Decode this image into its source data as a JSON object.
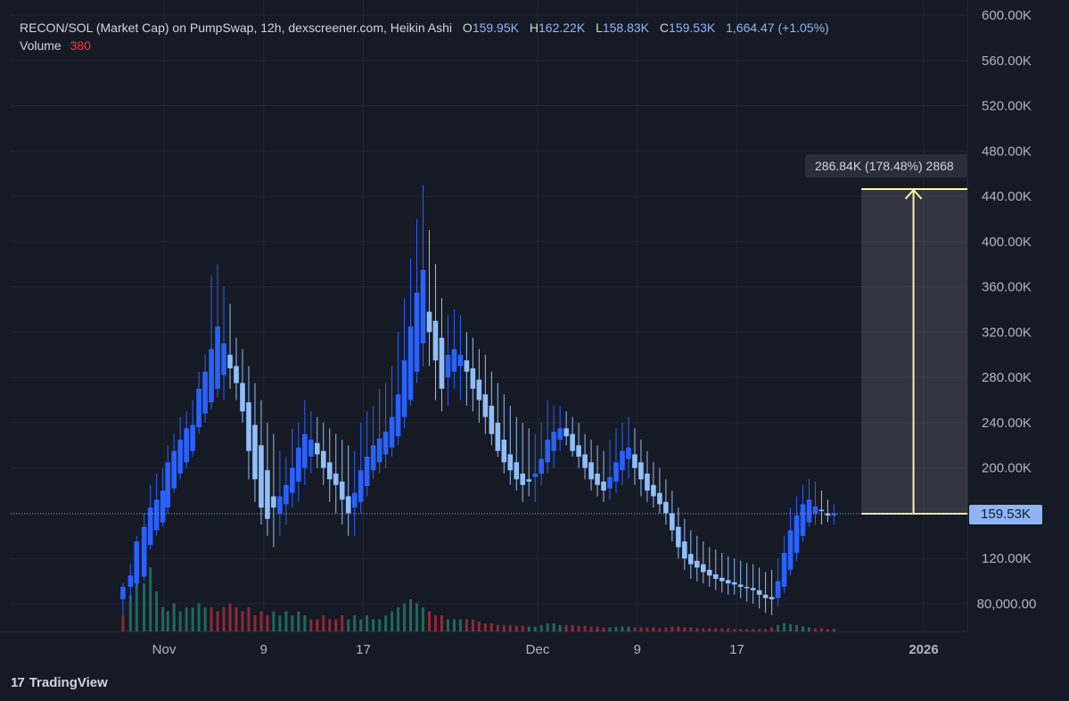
{
  "legend": {
    "title": "RECON/SOL (Market Cap) on PumpSwap, 12h, dexscreener.com, Heikin Ashi",
    "o_label": "O",
    "o_value": "159.95K",
    "h_label": "H",
    "h_value": "162.22K",
    "l_label": "L",
    "l_value": "158.83K",
    "c_label": "C",
    "c_value": "159.53K",
    "change": "1,664.47 (+1.05%)",
    "volume_label": "Volume",
    "volume_value": "380"
  },
  "brand": {
    "logo_text": "17",
    "name": "TradingView"
  },
  "measure": {
    "label": "286.84K (178.48%) 2868"
  },
  "last_price_tag": "159.53K",
  "colors": {
    "background": "#161a25",
    "grid": "#222632",
    "up_candle": "#2962ff",
    "down_candle": "#90bff9",
    "volume_up": "#22ab94",
    "volume_down": "#f23645",
    "measure_line": "#fff2a8",
    "price_line": "#8fb4f5"
  },
  "chart_data": {
    "type": "candlestick",
    "title": "RECON/SOL (Market Cap) on PumpSwap, 12h, dexscreener.com, Heikin Ashi",
    "y_ticks": [
      "600.00K",
      "560.00K",
      "520.00K",
      "480.00K",
      "440.00K",
      "400.00K",
      "360.00K",
      "320.00K",
      "280.00K",
      "240.00K",
      "200.00K",
      "120.00K",
      "80,000.00"
    ],
    "y_tick_values": [
      600,
      560,
      520,
      480,
      440,
      400,
      360,
      320,
      280,
      240,
      200,
      120,
      80
    ],
    "x_ticks": [
      "Nov",
      "9",
      "17",
      "Dec",
      "9",
      "17",
      "2026"
    ],
    "x_tick_days": [
      0,
      8,
      16,
      30,
      38,
      46,
      61
    ],
    "ylim_k": [
      70,
      610
    ],
    "xlim_days": [
      -4.6,
      64.8
    ],
    "grid": true,
    "y_scale": "linear",
    "last_price_k": 159.53,
    "measure_target_k": 446.37,
    "measure_span_days": [
      56,
      63.2
    ],
    "candles_note": "Heikin Ashi 12h candles in thousands; x in days from Nov 1; values estimated from gridlines",
    "candles": [
      [
        -3.3,
        84,
        98,
        70,
        95
      ],
      [
        -2.7,
        95,
        115,
        82,
        105
      ],
      [
        -2.2,
        98,
        140,
        94,
        135
      ],
      [
        -1.6,
        104,
        160,
        100,
        148
      ],
      [
        -1.1,
        132,
        185,
        128,
        165
      ],
      [
        -0.6,
        145,
        195,
        140,
        172
      ],
      [
        -0.1,
        152,
        200,
        148,
        180
      ],
      [
        0.3,
        165,
        220,
        160,
        205
      ],
      [
        0.8,
        182,
        230,
        178,
        215
      ],
      [
        1.3,
        195,
        245,
        190,
        225
      ],
      [
        1.8,
        205,
        250,
        200,
        235
      ],
      [
        2.3,
        215,
        260,
        210,
        238
      ],
      [
        2.8,
        236,
        285,
        230,
        270
      ],
      [
        3.3,
        248,
        300,
        240,
        285
      ],
      [
        3.8,
        258,
        370,
        252,
        305
      ],
      [
        4.3,
        270,
        380,
        262,
        325
      ],
      [
        4.8,
        282,
        360,
        260,
        310
      ],
      [
        5.3,
        300,
        345,
        270,
        288
      ],
      [
        5.8,
        290,
        315,
        260,
        275
      ],
      [
        6.3,
        275,
        305,
        240,
        250
      ],
      [
        6.8,
        258,
        290,
        190,
        215
      ],
      [
        7.3,
        238,
        275,
        170,
        190
      ],
      [
        7.8,
        220,
        260,
        150,
        165
      ],
      [
        8.3,
        198,
        240,
        140,
        155
      ],
      [
        8.8,
        175,
        230,
        130,
        165
      ],
      [
        9.3,
        160,
        215,
        140,
        175
      ],
      [
        9.8,
        168,
        210,
        150,
        185
      ],
      [
        10.3,
        178,
        235,
        165,
        200
      ],
      [
        10.8,
        188,
        240,
        170,
        218
      ],
      [
        11.3,
        200,
        260,
        185,
        230
      ],
      [
        11.8,
        210,
        250,
        195,
        225
      ],
      [
        12.3,
        222,
        245,
        200,
        212
      ],
      [
        12.8,
        215,
        240,
        185,
        200
      ],
      [
        13.3,
        205,
        235,
        170,
        190
      ],
      [
        13.8,
        195,
        230,
        160,
        185
      ],
      [
        14.3,
        188,
        225,
        150,
        172
      ],
      [
        14.8,
        175,
        220,
        140,
        160
      ],
      [
        15.3,
        165,
        215,
        140,
        178
      ],
      [
        15.8,
        170,
        240,
        160,
        198
      ],
      [
        16.3,
        184,
        250,
        175,
        210
      ],
      [
        16.8,
        198,
        255,
        190,
        220
      ],
      [
        17.3,
        205,
        270,
        195,
        226
      ],
      [
        17.8,
        212,
        275,
        200,
        232
      ],
      [
        18.3,
        218,
        290,
        210,
        245
      ],
      [
        18.8,
        228,
        320,
        220,
        265
      ],
      [
        19.3,
        245,
        350,
        235,
        295
      ],
      [
        19.8,
        260,
        385,
        255,
        325
      ],
      [
        20.3,
        285,
        420,
        275,
        355
      ],
      [
        20.8,
        310,
        450,
        290,
        375
      ],
      [
        21.3,
        338,
        410,
        290,
        320
      ],
      [
        21.8,
        330,
        380,
        260,
        295
      ],
      [
        22.3,
        315,
        350,
        250,
        270
      ],
      [
        22.8,
        280,
        335,
        255,
        300
      ],
      [
        23.3,
        285,
        340,
        270,
        305
      ],
      [
        23.8,
        290,
        335,
        260,
        300
      ],
      [
        24.3,
        295,
        320,
        255,
        285
      ],
      [
        24.8,
        288,
        315,
        250,
        270
      ],
      [
        25.3,
        278,
        305,
        240,
        260
      ],
      [
        25.8,
        265,
        300,
        230,
        245
      ],
      [
        26.3,
        255,
        285,
        220,
        230
      ],
      [
        26.8,
        240,
        275,
        210,
        215
      ],
      [
        27.3,
        225,
        265,
        195,
        205
      ],
      [
        27.8,
        212,
        255,
        185,
        198
      ],
      [
        28.3,
        205,
        245,
        180,
        190
      ],
      [
        28.8,
        195,
        240,
        170,
        185
      ],
      [
        29.3,
        190,
        235,
        175,
        188
      ],
      [
        29.8,
        192,
        230,
        170,
        195
      ],
      [
        30.3,
        195,
        240,
        185,
        208
      ],
      [
        30.8,
        205,
        260,
        195,
        225
      ],
      [
        31.3,
        215,
        255,
        200,
        232
      ],
      [
        31.8,
        225,
        255,
        215,
        235
      ],
      [
        32.3,
        235,
        250,
        220,
        228
      ],
      [
        32.8,
        230,
        245,
        210,
        215
      ],
      [
        33.3,
        220,
        240,
        200,
        210
      ],
      [
        33.8,
        212,
        230,
        190,
        200
      ],
      [
        34.3,
        205,
        225,
        180,
        190
      ],
      [
        34.8,
        195,
        220,
        175,
        185
      ],
      [
        35.3,
        188,
        215,
        170,
        180
      ],
      [
        35.8,
        182,
        225,
        172,
        192
      ],
      [
        36.3,
        188,
        235,
        178,
        205
      ],
      [
        36.8,
        198,
        240,
        185,
        215
      ],
      [
        37.3,
        208,
        245,
        190,
        218
      ],
      [
        37.8,
        212,
        235,
        185,
        200
      ],
      [
        38.3,
        205,
        225,
        175,
        190
      ],
      [
        38.8,
        195,
        215,
        170,
        180
      ],
      [
        39.3,
        185,
        205,
        165,
        175
      ],
      [
        39.8,
        178,
        200,
        160,
        168
      ],
      [
        40.3,
        170,
        190,
        150,
        160
      ],
      [
        40.8,
        160,
        180,
        135,
        145
      ],
      [
        41.3,
        148,
        165,
        120,
        130
      ],
      [
        41.8,
        135,
        155,
        110,
        120
      ],
      [
        42.3,
        124,
        145,
        102,
        115
      ],
      [
        42.8,
        118,
        140,
        100,
        112
      ],
      [
        43.3,
        115,
        135,
        98,
        108
      ],
      [
        43.8,
        110,
        130,
        95,
        105
      ],
      [
        44.3,
        106,
        128,
        92,
        102
      ],
      [
        44.8,
        103,
        125,
        90,
        100
      ],
      [
        45.3,
        101,
        122,
        88,
        98
      ],
      [
        45.8,
        99,
        120,
        88,
        97
      ],
      [
        46.3,
        97,
        118,
        85,
        95
      ],
      [
        46.8,
        95,
        116,
        82,
        94
      ],
      [
        47.3,
        94,
        115,
        80,
        92
      ],
      [
        47.8,
        92,
        112,
        76,
        88
      ],
      [
        48.3,
        88,
        108,
        72,
        85
      ],
      [
        48.8,
        86,
        110,
        70,
        84
      ],
      [
        49.3,
        85,
        120,
        78,
        100
      ],
      [
        49.8,
        95,
        140,
        90,
        125
      ],
      [
        50.3,
        110,
        165,
        105,
        145
      ],
      [
        50.8,
        125,
        175,
        118,
        158
      ],
      [
        51.3,
        140,
        185,
        135,
        168
      ],
      [
        51.8,
        152,
        190,
        148,
        172
      ],
      [
        52.3,
        160,
        188,
        150,
        166
      ],
      [
        52.8,
        163,
        180,
        150,
        162
      ],
      [
        53.3,
        160,
        172,
        152,
        158
      ],
      [
        53.8,
        158,
        168,
        150,
        160
      ]
    ],
    "volumes_note": "Volume bar heights relative to panel max (1.0)",
    "volume_panel_k_range": "bottom panel",
    "volumes": [
      [
        -3.3,
        0.2,
        "down"
      ],
      [
        -2.7,
        0.45,
        "up"
      ],
      [
        -2.2,
        1.0,
        "up"
      ],
      [
        -1.6,
        0.6,
        "up"
      ],
      [
        -1.1,
        0.8,
        "up"
      ],
      [
        -0.6,
        0.5,
        "up"
      ],
      [
        -0.1,
        0.3,
        "up"
      ],
      [
        0.3,
        0.25,
        "up"
      ],
      [
        0.8,
        0.35,
        "up"
      ],
      [
        1.3,
        0.25,
        "up"
      ],
      [
        1.8,
        0.3,
        "up"
      ],
      [
        2.3,
        0.3,
        "up"
      ],
      [
        2.8,
        0.35,
        "up"
      ],
      [
        3.3,
        0.3,
        "up"
      ],
      [
        3.8,
        0.3,
        "down"
      ],
      [
        4.3,
        0.25,
        "down"
      ],
      [
        4.8,
        0.3,
        "down"
      ],
      [
        5.3,
        0.35,
        "down"
      ],
      [
        5.8,
        0.3,
        "down"
      ],
      [
        6.3,
        0.25,
        "down"
      ],
      [
        6.8,
        0.3,
        "down"
      ],
      [
        7.3,
        0.2,
        "down"
      ],
      [
        7.8,
        0.25,
        "down"
      ],
      [
        8.3,
        0.2,
        "down"
      ],
      [
        8.8,
        0.25,
        "up"
      ],
      [
        9.3,
        0.2,
        "up"
      ],
      [
        9.8,
        0.25,
        "up"
      ],
      [
        10.3,
        0.2,
        "up"
      ],
      [
        10.8,
        0.25,
        "up"
      ],
      [
        11.3,
        0.2,
        "up"
      ],
      [
        11.8,
        0.15,
        "down"
      ],
      [
        12.3,
        0.15,
        "down"
      ],
      [
        12.8,
        0.2,
        "down"
      ],
      [
        13.3,
        0.15,
        "down"
      ],
      [
        13.8,
        0.15,
        "down"
      ],
      [
        14.3,
        0.2,
        "down"
      ],
      [
        14.8,
        0.15,
        "up"
      ],
      [
        15.3,
        0.2,
        "up"
      ],
      [
        15.8,
        0.15,
        "up"
      ],
      [
        16.3,
        0.2,
        "up"
      ],
      [
        16.8,
        0.15,
        "up"
      ],
      [
        17.3,
        0.15,
        "up"
      ],
      [
        17.8,
        0.2,
        "up"
      ],
      [
        18.3,
        0.25,
        "up"
      ],
      [
        18.8,
        0.3,
        "up"
      ],
      [
        19.3,
        0.35,
        "up"
      ],
      [
        19.8,
        0.4,
        "up"
      ],
      [
        20.3,
        0.35,
        "up"
      ],
      [
        20.8,
        0.3,
        "up"
      ],
      [
        21.3,
        0.25,
        "down"
      ],
      [
        21.8,
        0.2,
        "down"
      ],
      [
        22.3,
        0.2,
        "down"
      ],
      [
        22.8,
        0.15,
        "up"
      ],
      [
        23.3,
        0.15,
        "up"
      ],
      [
        23.8,
        0.15,
        "up"
      ],
      [
        24.3,
        0.15,
        "down"
      ],
      [
        24.8,
        0.15,
        "down"
      ],
      [
        25.3,
        0.12,
        "down"
      ],
      [
        25.8,
        0.1,
        "down"
      ],
      [
        26.3,
        0.1,
        "down"
      ],
      [
        26.8,
        0.08,
        "down"
      ],
      [
        27.3,
        0.08,
        "down"
      ],
      [
        27.8,
        0.08,
        "down"
      ],
      [
        28.3,
        0.07,
        "down"
      ],
      [
        28.8,
        0.07,
        "down"
      ],
      [
        29.3,
        0.06,
        "up"
      ],
      [
        29.8,
        0.06,
        "up"
      ],
      [
        30.3,
        0.08,
        "up"
      ],
      [
        30.8,
        0.1,
        "up"
      ],
      [
        31.3,
        0.1,
        "up"
      ],
      [
        31.8,
        0.08,
        "up"
      ],
      [
        32.3,
        0.08,
        "down"
      ],
      [
        32.8,
        0.08,
        "down"
      ],
      [
        33.3,
        0.07,
        "down"
      ],
      [
        33.8,
        0.07,
        "down"
      ],
      [
        34.3,
        0.06,
        "down"
      ],
      [
        34.8,
        0.06,
        "down"
      ],
      [
        35.3,
        0.05,
        "down"
      ],
      [
        35.8,
        0.05,
        "up"
      ],
      [
        36.3,
        0.06,
        "up"
      ],
      [
        36.8,
        0.06,
        "up"
      ],
      [
        37.3,
        0.06,
        "up"
      ],
      [
        37.8,
        0.05,
        "down"
      ],
      [
        38.3,
        0.05,
        "down"
      ],
      [
        38.8,
        0.05,
        "down"
      ],
      [
        39.3,
        0.05,
        "down"
      ],
      [
        39.8,
        0.04,
        "down"
      ],
      [
        40.3,
        0.05,
        "down"
      ],
      [
        40.8,
        0.06,
        "down"
      ],
      [
        41.3,
        0.06,
        "down"
      ],
      [
        41.8,
        0.05,
        "down"
      ],
      [
        42.3,
        0.05,
        "down"
      ],
      [
        42.8,
        0.04,
        "down"
      ],
      [
        43.3,
        0.04,
        "down"
      ],
      [
        43.8,
        0.04,
        "down"
      ],
      [
        44.3,
        0.04,
        "down"
      ],
      [
        44.8,
        0.04,
        "down"
      ],
      [
        45.3,
        0.04,
        "down"
      ],
      [
        45.8,
        0.03,
        "down"
      ],
      [
        46.3,
        0.03,
        "down"
      ],
      [
        46.8,
        0.03,
        "down"
      ],
      [
        47.3,
        0.03,
        "down"
      ],
      [
        47.8,
        0.03,
        "down"
      ],
      [
        48.3,
        0.03,
        "down"
      ],
      [
        48.8,
        0.05,
        "down"
      ],
      [
        49.3,
        0.08,
        "up"
      ],
      [
        49.8,
        0.1,
        "up"
      ],
      [
        50.3,
        0.09,
        "up"
      ],
      [
        50.8,
        0.08,
        "up"
      ],
      [
        51.3,
        0.06,
        "up"
      ],
      [
        51.8,
        0.05,
        "up"
      ],
      [
        52.3,
        0.04,
        "down"
      ],
      [
        52.8,
        0.04,
        "down"
      ],
      [
        53.3,
        0.03,
        "down"
      ],
      [
        53.8,
        0.03,
        "up"
      ]
    ]
  }
}
